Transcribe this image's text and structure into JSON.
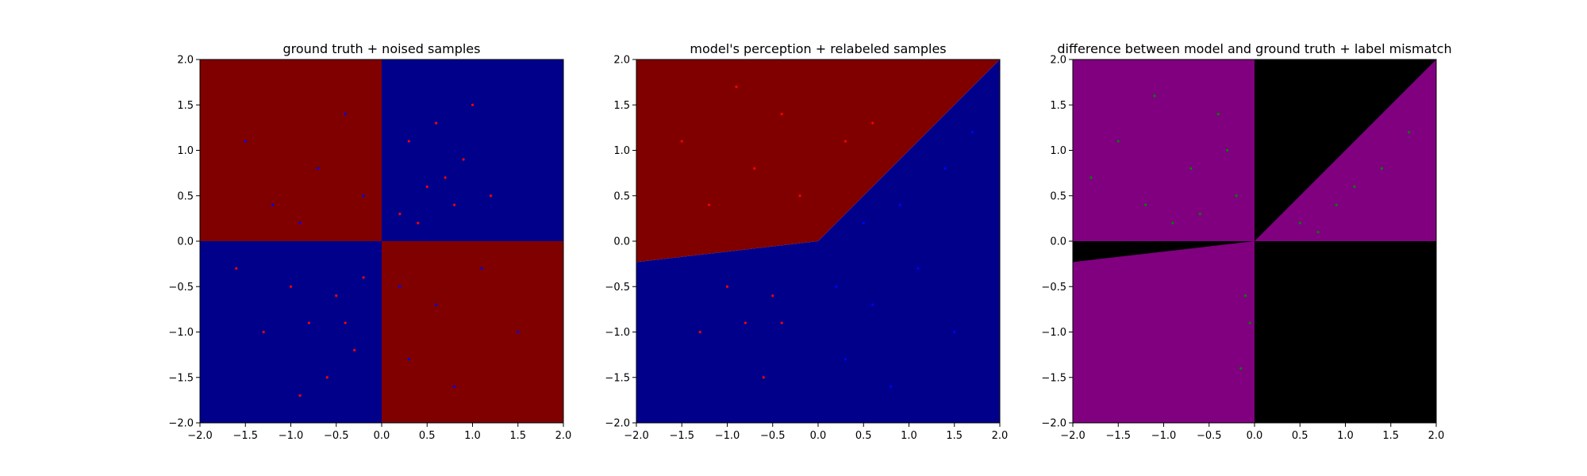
{
  "colors": {
    "red_region": "#800000",
    "blue_region": "#00008b",
    "red_point": "#ff0000",
    "blue_point": "#0000ff",
    "purple_region": "#800080",
    "black_region": "#000000",
    "green_point": "#008000"
  },
  "chart_data": [
    {
      "type": "scatter",
      "title": "ground truth + noised samples",
      "xlim": [
        -2.0,
        2.0
      ],
      "ylim": [
        -2.0,
        2.0
      ],
      "xticks": [
        "−2.0",
        "−1.5",
        "−1.0",
        "−0.5",
        "0.0",
        "0.5",
        "1.0",
        "1.5",
        "2.0"
      ],
      "yticks": [
        "−2.0",
        "−1.5",
        "−1.0",
        "−0.5",
        "0.0",
        "0.5",
        "1.0",
        "1.5",
        "2.0"
      ],
      "regions": [
        {
          "label": "red",
          "description": "x<0,y>0 and x>0,y<0"
        },
        {
          "label": "blue",
          "description": "x>0,y>0 and x<0,y<0"
        }
      ],
      "points": [
        {
          "series": "red",
          "x": 0.5,
          "y": 0.6
        },
        {
          "series": "red",
          "x": 0.3,
          "y": 1.1
        },
        {
          "series": "red",
          "x": 0.8,
          "y": 0.4
        },
        {
          "series": "red",
          "x": 0.6,
          "y": 1.3
        },
        {
          "series": "red",
          "x": 0.2,
          "y": 0.3
        },
        {
          "series": "red",
          "x": 1.2,
          "y": 0.5
        },
        {
          "series": "red",
          "x": 0.9,
          "y": 0.9
        },
        {
          "series": "red",
          "x": 0.4,
          "y": 0.2
        },
        {
          "series": "red",
          "x": 1.0,
          "y": 1.5
        },
        {
          "series": "red",
          "x": 0.7,
          "y": 0.7
        },
        {
          "series": "red",
          "x": -0.5,
          "y": -0.6
        },
        {
          "series": "red",
          "x": -0.8,
          "y": -0.9
        },
        {
          "series": "red",
          "x": -0.3,
          "y": -1.2
        },
        {
          "series": "red",
          "x": -1.0,
          "y": -0.5
        },
        {
          "series": "red",
          "x": -0.6,
          "y": -1.5
        },
        {
          "series": "red",
          "x": -1.3,
          "y": -1.0
        },
        {
          "series": "red",
          "x": -0.2,
          "y": -0.4
        },
        {
          "series": "red",
          "x": -0.9,
          "y": -1.7
        },
        {
          "series": "red",
          "x": -1.6,
          "y": -0.3
        },
        {
          "series": "red",
          "x": -0.4,
          "y": -0.9
        },
        {
          "series": "blue",
          "x": -0.7,
          "y": 0.8
        },
        {
          "series": "blue",
          "x": -1.2,
          "y": 0.4
        },
        {
          "series": "blue",
          "x": -0.4,
          "y": 1.4
        },
        {
          "series": "blue",
          "x": -1.5,
          "y": 1.1
        },
        {
          "series": "blue",
          "x": -0.2,
          "y": 0.5
        },
        {
          "series": "blue",
          "x": -0.9,
          "y": 0.2
        },
        {
          "series": "blue",
          "x": 0.6,
          "y": -0.7
        },
        {
          "series": "blue",
          "x": 1.1,
          "y": -0.3
        },
        {
          "series": "blue",
          "x": 0.3,
          "y": -1.3
        },
        {
          "series": "blue",
          "x": 1.5,
          "y": -1.0
        },
        {
          "series": "blue",
          "x": 0.8,
          "y": -1.6
        },
        {
          "series": "blue",
          "x": 0.2,
          "y": -0.5
        }
      ]
    },
    {
      "type": "scatter",
      "title": "model's perception + relabeled samples",
      "xlim": [
        -2.0,
        2.0
      ],
      "ylim": [
        -2.0,
        2.0
      ],
      "xticks": [
        "−2.0",
        "−1.5",
        "−1.0",
        "−0.5",
        "0.0",
        "0.5",
        "1.0",
        "1.5",
        "2.0"
      ],
      "yticks": [
        "−2.0",
        "−1.5",
        "−1.0",
        "−0.5",
        "0.0",
        "0.5",
        "1.0",
        "1.5",
        "2.0"
      ],
      "regions": [
        {
          "label": "red",
          "description": "above the learned boundary"
        },
        {
          "label": "blue",
          "description": "below the learned boundary"
        }
      ],
      "boundary": [
        [
          -2.0,
          -0.23
        ],
        [
          0.0,
          0.0
        ],
        [
          2.0,
          2.0
        ]
      ],
      "points": [
        {
          "series": "red",
          "x": -0.7,
          "y": 0.8
        },
        {
          "series": "red",
          "x": -1.2,
          "y": 0.4
        },
        {
          "series": "red",
          "x": -0.4,
          "y": 1.4
        },
        {
          "series": "red",
          "x": -1.5,
          "y": 1.1
        },
        {
          "series": "red",
          "x": -0.2,
          "y": 0.5
        },
        {
          "series": "red",
          "x": 0.3,
          "y": 1.1
        },
        {
          "series": "red",
          "x": 0.6,
          "y": 1.3
        },
        {
          "series": "red",
          "x": -0.9,
          "y": 1.7
        },
        {
          "series": "red",
          "x": -0.5,
          "y": -0.6
        },
        {
          "series": "red",
          "x": -0.8,
          "y": -0.9
        },
        {
          "series": "red",
          "x": -1.0,
          "y": -0.5
        },
        {
          "series": "red",
          "x": -0.6,
          "y": -1.5
        },
        {
          "series": "red",
          "x": -1.3,
          "y": -1.0
        },
        {
          "series": "red",
          "x": -0.4,
          "y": -0.9
        },
        {
          "series": "blue",
          "x": 0.6,
          "y": -0.7
        },
        {
          "series": "blue",
          "x": 1.1,
          "y": -0.3
        },
        {
          "series": "blue",
          "x": 0.3,
          "y": -1.3
        },
        {
          "series": "blue",
          "x": 1.5,
          "y": -1.0
        },
        {
          "series": "blue",
          "x": 0.8,
          "y": -1.6
        },
        {
          "series": "blue",
          "x": 0.9,
          "y": 0.4
        },
        {
          "series": "blue",
          "x": 1.4,
          "y": 0.8
        },
        {
          "series": "blue",
          "x": 0.5,
          "y": 0.2
        },
        {
          "series": "blue",
          "x": 0.2,
          "y": -0.5
        },
        {
          "series": "blue",
          "x": 1.7,
          "y": 1.2
        }
      ]
    },
    {
      "type": "scatter",
      "title": "difference between model and ground truth + label mismatch",
      "xlim": [
        -2.0,
        2.0
      ],
      "ylim": [
        -2.0,
        2.0
      ],
      "xticks": [
        "−2.0",
        "−1.5",
        "−1.0",
        "−0.5",
        "0.0",
        "0.5",
        "1.0",
        "1.5",
        "2.0"
      ],
      "yticks": [
        "−2.0",
        "−1.5",
        "−1.0",
        "−0.5",
        "0.0",
        "0.5",
        "1.0",
        "1.5",
        "2.0"
      ],
      "regions": [
        {
          "label": "purple",
          "description": "model agrees with ground truth"
        },
        {
          "label": "black",
          "description": "model disagrees with ground truth"
        }
      ],
      "points": [
        {
          "series": "green",
          "x": -0.7,
          "y": 0.8
        },
        {
          "series": "green",
          "x": -1.2,
          "y": 0.4
        },
        {
          "series": "green",
          "x": -0.4,
          "y": 1.4
        },
        {
          "series": "green",
          "x": -1.5,
          "y": 1.1
        },
        {
          "series": "green",
          "x": -0.2,
          "y": 0.5
        },
        {
          "series": "green",
          "x": -0.9,
          "y": 0.2
        },
        {
          "series": "green",
          "x": -1.1,
          "y": 1.6
        },
        {
          "series": "green",
          "x": -0.6,
          "y": 0.3
        },
        {
          "series": "green",
          "x": -1.8,
          "y": 0.7
        },
        {
          "series": "green",
          "x": -0.3,
          "y": 1.0
        },
        {
          "series": "green",
          "x": 0.9,
          "y": 0.4
        },
        {
          "series": "green",
          "x": 1.4,
          "y": 0.8
        },
        {
          "series": "green",
          "x": 0.5,
          "y": 0.2
        },
        {
          "series": "green",
          "x": 1.7,
          "y": 1.2
        },
        {
          "series": "green",
          "x": 1.1,
          "y": 0.6
        },
        {
          "series": "green",
          "x": 0.7,
          "y": 0.1
        },
        {
          "series": "green",
          "x": -0.1,
          "y": -0.6
        },
        {
          "series": "green",
          "x": -0.15,
          "y": -1.4
        },
        {
          "series": "green",
          "x": -0.05,
          "y": -0.9
        }
      ]
    }
  ]
}
